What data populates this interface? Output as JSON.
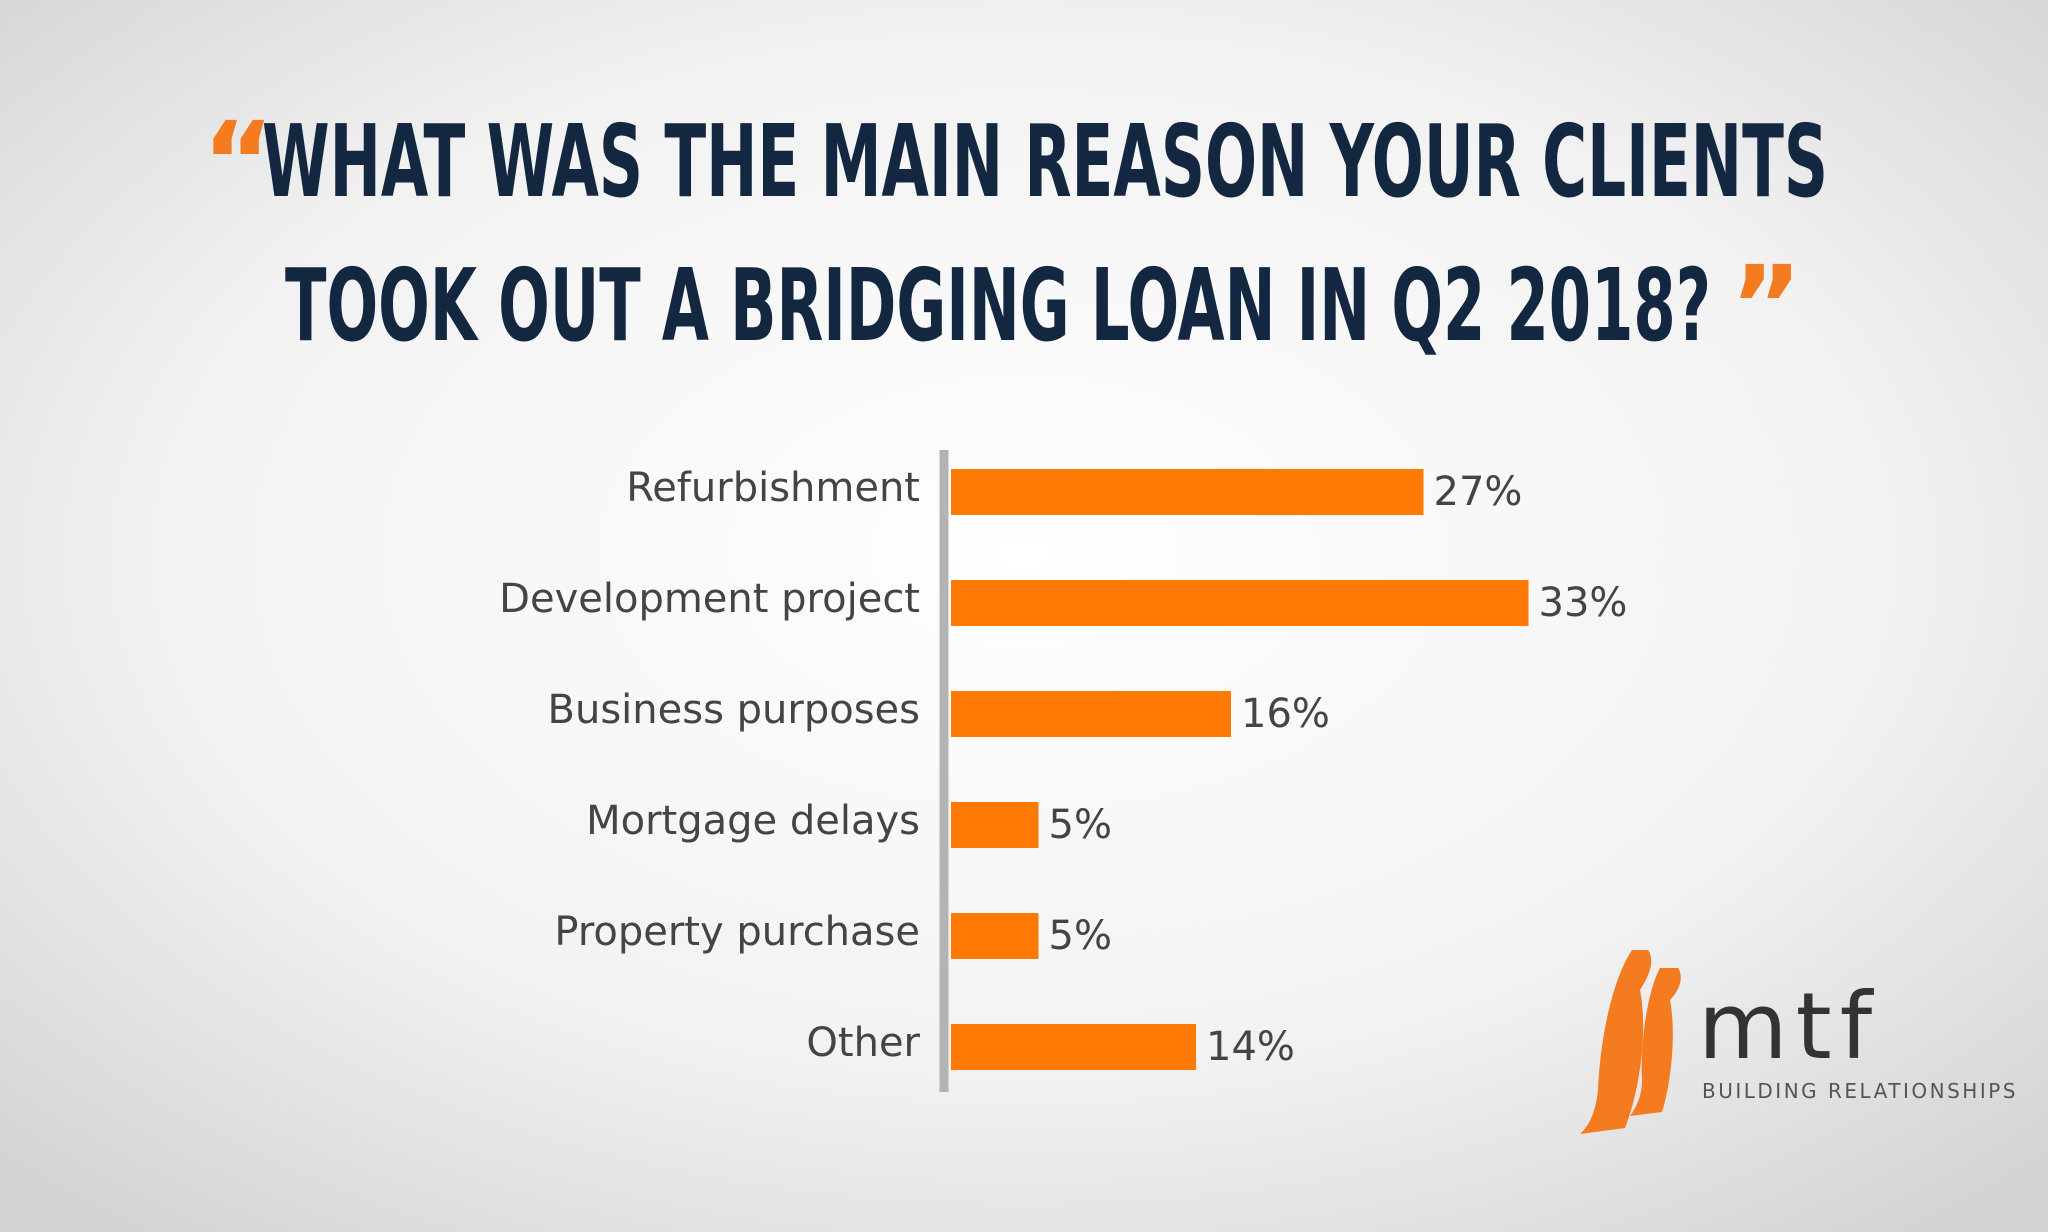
{
  "chart_data": {
    "type": "bar",
    "orientation": "horizontal",
    "title": [
      "WHAT WAS THE MAIN REASON YOUR CLIENTS",
      "TOOK OUT A BRIDGING LOAN IN Q2 2018?"
    ],
    "title_quotes": [
      "“",
      "”"
    ],
    "categories": [
      "Refurbishment",
      "Development project",
      "Business purposes",
      "Mortgage delays",
      "Property purchase",
      "Other"
    ],
    "values": [
      27,
      33,
      16,
      5,
      5,
      14
    ],
    "value_labels": [
      "27%",
      "33%",
      "16%",
      "5%",
      "5%",
      "14%"
    ],
    "color": "#ff7a05"
  },
  "logo": {
    "name": "mtf",
    "tagline": "BUILDING RELATIONSHIPS"
  }
}
